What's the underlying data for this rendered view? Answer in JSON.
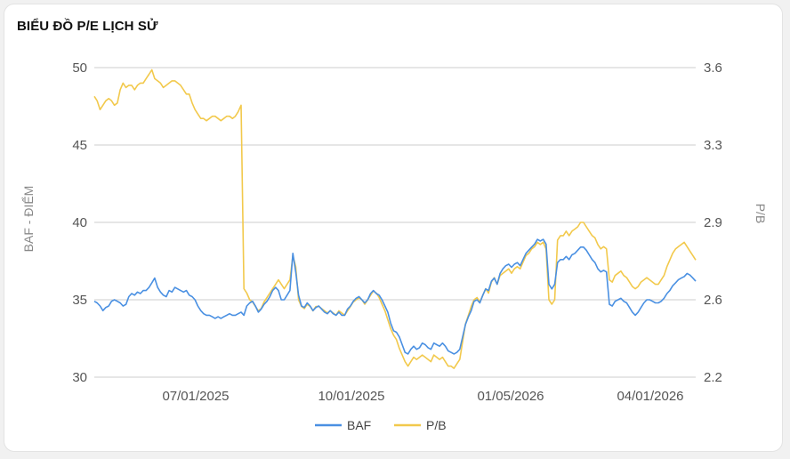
{
  "title": "BIỂU ĐỒ P/E LỊCH SỬ",
  "colors": {
    "baf": "#4a90e2",
    "pb": "#f2c94c",
    "grid": "#cccccc"
  },
  "chart_data": {
    "type": "line",
    "title": "BIỂU ĐỒ P/E LỊCH SỬ",
    "ylabel": "BAF - ĐIỂM",
    "y2label": "P/B",
    "ylim": [
      30,
      50
    ],
    "y2lim": [
      2.2,
      3.6
    ],
    "yticks": [
      "30",
      "35",
      "40",
      "45",
      "50"
    ],
    "y2ticks": [
      "2.2",
      "2.6",
      "2.9",
      "3.3",
      "3.6"
    ],
    "xticks": [
      "07/01/2025",
      "10/01/2025",
      "01/05/2026",
      "04/01/2026"
    ],
    "legend_position": "bottom",
    "grid": true,
    "series": [
      {
        "name": "BAF",
        "axis": "left",
        "values": [
          34.9,
          34.8,
          34.6,
          34.3,
          34.5,
          34.6,
          34.9,
          35.0,
          34.9,
          34.8,
          34.6,
          34.7,
          35.2,
          35.4,
          35.3,
          35.5,
          35.4,
          35.6,
          35.6,
          35.8,
          36.1,
          36.4,
          35.8,
          35.5,
          35.3,
          35.2,
          35.6,
          35.5,
          35.8,
          35.7,
          35.6,
          35.5,
          35.6,
          35.3,
          35.2,
          35.0,
          34.6,
          34.3,
          34.1,
          34.0,
          34.0,
          33.9,
          33.8,
          33.9,
          33.8,
          33.9,
          34.0,
          34.1,
          34.0,
          34.0,
          34.1,
          34.2,
          34.0,
          34.6,
          34.8,
          34.9,
          34.6,
          34.2,
          34.4,
          34.7,
          34.9,
          35.2,
          35.6,
          35.8,
          35.6,
          35.0,
          35.0,
          35.3,
          35.6,
          38.0,
          36.8,
          35.3,
          34.6,
          34.5,
          34.8,
          34.6,
          34.3,
          34.5,
          34.6,
          34.4,
          34.2,
          34.1,
          34.3,
          34.1,
          34.0,
          34.2,
          34.0,
          34.0,
          34.4,
          34.6,
          34.9,
          35.1,
          35.2,
          35.0,
          34.8,
          35.0,
          35.4,
          35.6,
          35.4,
          35.3,
          35.0,
          34.6,
          34.2,
          33.5,
          33.0,
          32.9,
          32.6,
          32.1,
          31.6,
          31.5,
          31.8,
          32.0,
          31.8,
          31.9,
          32.2,
          32.1,
          31.9,
          31.8,
          32.2,
          32.1,
          32.0,
          32.2,
          32.0,
          31.7,
          31.6,
          31.5,
          31.6,
          31.8,
          32.6,
          33.4,
          33.9,
          34.3,
          34.9,
          35.0,
          34.8,
          35.3,
          35.7,
          35.6,
          36.2,
          36.4,
          36.0,
          36.7,
          37.0,
          37.2,
          37.3,
          37.1,
          37.3,
          37.4,
          37.2,
          37.6,
          38.0,
          38.2,
          38.4,
          38.6,
          38.9,
          38.8,
          38.9,
          38.6,
          36.0,
          35.7,
          36.0,
          37.4,
          37.6,
          37.6,
          37.8,
          37.6,
          37.9,
          38.0,
          38.2,
          38.4,
          38.4,
          38.2,
          37.9,
          37.6,
          37.4,
          37.0,
          36.8,
          36.9,
          36.8,
          34.7,
          34.6,
          34.9,
          35.0,
          35.1,
          34.9,
          34.8,
          34.5,
          34.2,
          34.0,
          34.2,
          34.5,
          34.8,
          35.0,
          35.0,
          34.9,
          34.8,
          34.8,
          34.9,
          35.1,
          35.4,
          35.6,
          35.9,
          36.1,
          36.3,
          36.4,
          36.5,
          36.7,
          36.6,
          36.4,
          36.2
        ]
      },
      {
        "name": "P/B",
        "axis": "right",
        "values": [
          3.47,
          3.45,
          3.41,
          3.43,
          3.45,
          3.46,
          3.45,
          3.43,
          3.44,
          3.5,
          3.53,
          3.51,
          3.52,
          3.52,
          3.5,
          3.52,
          3.53,
          3.53,
          3.55,
          3.57,
          3.59,
          3.55,
          3.54,
          3.53,
          3.51,
          3.52,
          3.53,
          3.54,
          3.54,
          3.53,
          3.52,
          3.5,
          3.48,
          3.48,
          3.44,
          3.41,
          3.39,
          3.37,
          3.37,
          3.36,
          3.37,
          3.38,
          3.38,
          3.37,
          3.36,
          3.37,
          3.38,
          3.38,
          3.37,
          3.38,
          3.4,
          3.43,
          2.6,
          2.58,
          2.55,
          2.54,
          2.52,
          2.5,
          2.51,
          2.54,
          2.56,
          2.58,
          2.6,
          2.62,
          2.64,
          2.62,
          2.6,
          2.62,
          2.64,
          2.75,
          2.7,
          2.55,
          2.52,
          2.51,
          2.53,
          2.52,
          2.5,
          2.52,
          2.52,
          2.51,
          2.5,
          2.49,
          2.5,
          2.49,
          2.48,
          2.5,
          2.49,
          2.48,
          2.5,
          2.52,
          2.54,
          2.55,
          2.56,
          2.55,
          2.53,
          2.55,
          2.57,
          2.59,
          2.58,
          2.56,
          2.53,
          2.5,
          2.46,
          2.42,
          2.39,
          2.37,
          2.33,
          2.3,
          2.27,
          2.25,
          2.27,
          2.29,
          2.28,
          2.29,
          2.3,
          2.29,
          2.28,
          2.27,
          2.3,
          2.29,
          2.28,
          2.29,
          2.27,
          2.25,
          2.25,
          2.24,
          2.26,
          2.28,
          2.36,
          2.44,
          2.48,
          2.52,
          2.55,
          2.56,
          2.54,
          2.57,
          2.6,
          2.58,
          2.63,
          2.65,
          2.62,
          2.66,
          2.67,
          2.68,
          2.69,
          2.67,
          2.69,
          2.7,
          2.69,
          2.72,
          2.75,
          2.76,
          2.78,
          2.79,
          2.81,
          2.8,
          2.81,
          2.78,
          2.55,
          2.53,
          2.55,
          2.82,
          2.84,
          2.84,
          2.86,
          2.84,
          2.86,
          2.87,
          2.88,
          2.9,
          2.9,
          2.88,
          2.86,
          2.84,
          2.83,
          2.8,
          2.78,
          2.79,
          2.78,
          2.64,
          2.63,
          2.66,
          2.67,
          2.68,
          2.66,
          2.65,
          2.63,
          2.61,
          2.6,
          2.61,
          2.63,
          2.64,
          2.65,
          2.64,
          2.63,
          2.62,
          2.62,
          2.64,
          2.66,
          2.7,
          2.73,
          2.76,
          2.78,
          2.79,
          2.8,
          2.81,
          2.79,
          2.77,
          2.75,
          2.73
        ]
      }
    ]
  }
}
